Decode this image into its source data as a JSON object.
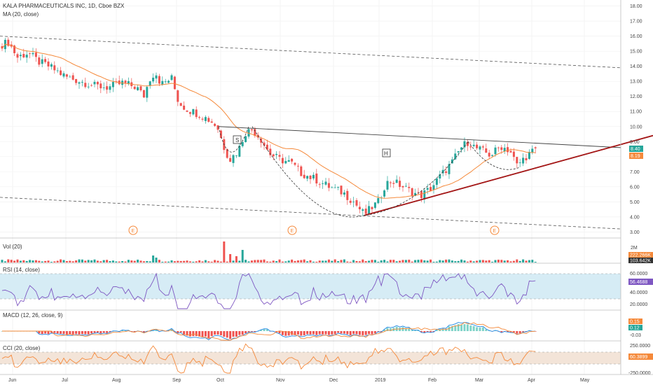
{
  "colors": {
    "up": "#26a69a",
    "down": "#ef5350",
    "ma": "#f5893a",
    "trend_red": "#a31515",
    "channel": "#555555",
    "rsi": "#7e57c2",
    "rsi_band": "#d6ecf5",
    "cci": "#f5893a",
    "cci_band": "#f3e4d8",
    "macd_line": "#1e88e5",
    "signal_line": "#f5893a",
    "earnings": "#f5893a"
  },
  "header": {
    "symbol_line": "KALA PHARMACEUTICALS INC, 1D, Cboe BZX",
    "ma_label": "MA (20, close)"
  },
  "main": {
    "price_ticks": [
      "18.00",
      "17.00",
      "16.00",
      "15.00",
      "14.00",
      "13.00",
      "12.00",
      "11.00",
      "10.00",
      "9.00",
      "8.00",
      "7.00",
      "6.00",
      "5.00",
      "4.00",
      "3.00"
    ],
    "price_tag": "8.40",
    "ma_tag": "8.19",
    "pattern_labels": {
      "s": "S",
      "h": "H"
    },
    "earnings_marker": "E"
  },
  "volume": {
    "label": "Vol (20)",
    "ticks": [
      "2M"
    ],
    "tag_a": "222.266K",
    "tag_b": "103.642K"
  },
  "rsi": {
    "label": "RSI (14, close)",
    "ticks": [
      "60.0000",
      "40.0000",
      "20.0000"
    ],
    "tag": "56.4688"
  },
  "macd": {
    "label": "MACD (12, 26, close, 9)",
    "tags": [
      "0.15",
      "0.12",
      "-0.03"
    ]
  },
  "cci": {
    "label": "CCI (20, close)",
    "ticks": [
      "250.0000",
      "-250.0000"
    ],
    "tag": "60.3899"
  },
  "time_axis": [
    "Jun",
    "Jul",
    "Aug",
    "Sep",
    "Oct",
    "Nov",
    "Dec",
    "2019",
    "Feb",
    "Mar",
    "Apr",
    "May"
  ],
  "chart_data": {
    "type": "candlestick",
    "title": "KALA PHARMACEUTICALS INC, 1D, Cboe BZX",
    "ylim": [
      2.6,
      18.4
    ],
    "x": [
      "Jun",
      "Jul",
      "Aug",
      "Sep",
      "Oct",
      "Nov",
      "Dec",
      "2019",
      "Feb",
      "Mar",
      "Apr",
      "May"
    ],
    "close_path": [
      [
        "Jun",
        15.4
      ],
      [
        "Jun",
        14.7
      ],
      [
        "Jun",
        14.4
      ],
      [
        "Jul",
        13.6
      ],
      [
        "Jul",
        13.0
      ],
      [
        "Jul",
        12.8
      ],
      [
        "Aug",
        12.6
      ],
      [
        "Aug",
        12.9
      ],
      [
        "Aug",
        12.4
      ],
      [
        "Aug",
        13.2
      ],
      [
        "Sep",
        12.0
      ],
      [
        "Sep",
        11.0
      ],
      [
        "Sep",
        10.8
      ],
      [
        "Oct",
        10.0
      ],
      [
        "Oct",
        8.0
      ],
      [
        "Oct",
        9.6
      ],
      [
        "Oct",
        8.8
      ],
      [
        "Nov",
        8.0
      ],
      [
        "Nov",
        7.4
      ],
      [
        "Nov",
        7.0
      ],
      [
        "Dec",
        6.6
      ],
      [
        "Dec",
        5.8
      ],
      [
        "Dec",
        5.2
      ],
      [
        "2019",
        4.1
      ],
      [
        "2019",
        5.2
      ],
      [
        "2019",
        6.4
      ],
      [
        "2019",
        5.9
      ],
      [
        "Feb",
        5.4
      ],
      [
        "Feb",
        6.6
      ],
      [
        "Feb",
        7.8
      ],
      [
        "Feb",
        9.0
      ],
      [
        "Mar",
        8.6
      ],
      [
        "Mar",
        8.7
      ],
      [
        "Mar",
        7.4
      ],
      [
        "Apr",
        8.4
      ]
    ],
    "ma20_last": 8.19,
    "last_close": 8.4,
    "patterns": [
      "S",
      "H"
    ],
    "earnings_events": [
      "E",
      "E",
      "E"
    ],
    "indicators": {
      "volume_last": [
        "222.266K",
        "103.642K"
      ],
      "rsi_last": 56.4688,
      "macd_last": [
        0.15,
        0.12,
        -0.03
      ],
      "cci_last": 60.3899
    }
  }
}
